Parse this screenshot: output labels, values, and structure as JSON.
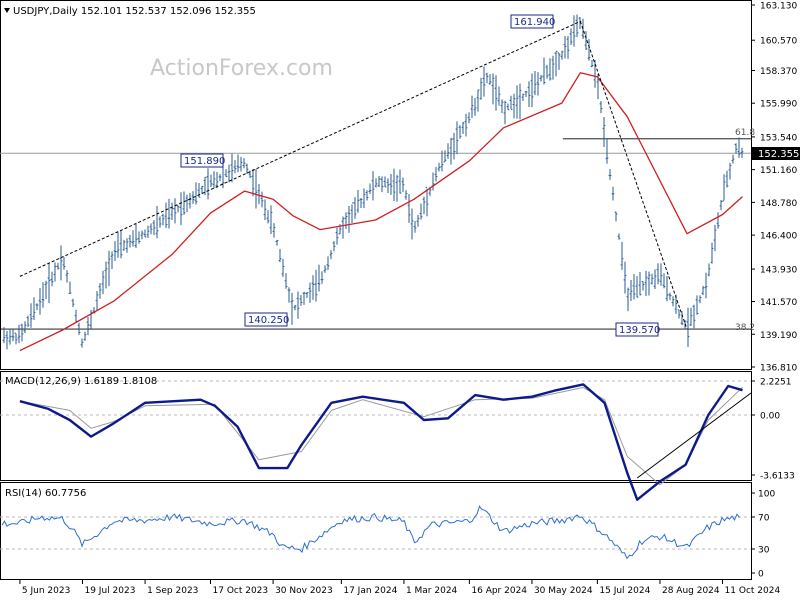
{
  "price_panel": {
    "info": "USDJPY,Daily  152.101 152.537 152.096 152.355",
    "watermark": "ActionForex.com",
    "current_price_label": "152.355",
    "axis_ticks": [
      "163.130",
      "160.570",
      "158.370",
      "155.990",
      "153.540",
      "151.160",
      "148.780",
      "146.400",
      "143.930",
      "141.570",
      "139.190",
      "136.810"
    ]
  },
  "macd_panel": {
    "label": "MACD(12,26,9) 1.6189 1.8108",
    "axis_ticks": [
      "2.2251",
      "0.00",
      "-3.6133"
    ]
  },
  "rsi_panel": {
    "label": "RSI(14) 60.7756",
    "axis_ticks": [
      "100",
      "70",
      "30",
      "0"
    ]
  },
  "x_axis_ticks": [
    "5 Jun 2023",
    "19 Jul 2023",
    "1 Sep 2023",
    "17 Oct 2023",
    "30 Nov 2023",
    "17 Jan 2024",
    "1 Mar 2024",
    "16 Apr 2024",
    "30 May 2024",
    "15 Jul 2024",
    "28 Aug 2024",
    "11 Oct 2024"
  ],
  "annotations": {
    "high_2024": "161.940",
    "high_2023": "151.890",
    "low_dec": "140.250",
    "low_sep": "139.570",
    "fib_618": "61.8",
    "fib_382": "38.2"
  },
  "colors": {
    "price_bars": "#2a5d96",
    "moving_average": "#d01f1f",
    "macd_line": "#0d1a8c",
    "signal_line": "#999999",
    "rsi_line": "#2e6fd0",
    "trend_lines": "#000000",
    "grid_dashes": "#bbbbbb"
  },
  "chart_data": [
    {
      "type": "line",
      "name_hint": "price",
      "x": [
        "2023-06-05",
        "2023-06-20",
        "2023-07-05",
        "2023-07-19",
        "2023-08-10",
        "2023-09-01",
        "2023-09-20",
        "2023-10-17",
        "2023-11-10",
        "2023-11-30",
        "2023-12-14",
        "2024-01-02",
        "2024-01-17",
        "2024-02-10",
        "2024-03-01",
        "2024-03-08",
        "2024-03-25",
        "2024-04-16",
        "2024-04-29",
        "2024-05-10",
        "2024-05-30",
        "2024-06-20",
        "2024-07-03",
        "2024-07-15",
        "2024-08-05",
        "2024-08-28",
        "2024-09-16",
        "2024-09-30",
        "2024-10-11",
        "2024-10-21",
        "2024-10-25"
      ],
      "values": [
        139.0,
        141.8,
        144.8,
        138.5,
        145.2,
        146.5,
        148.0,
        150.2,
        151.7,
        147.0,
        141.0,
        143.0,
        147.0,
        150.2,
        150.0,
        146.7,
        151.2,
        155.0,
        158.0,
        155.5,
        157.0,
        159.5,
        161.9,
        157.5,
        142.0,
        143.5,
        139.6,
        143.0,
        149.2,
        152.9,
        152.355
      ],
      "ylim": [
        136.81,
        163.13
      ],
      "axis_ticks": [
        136.81,
        139.19,
        141.57,
        143.93,
        146.4,
        148.78,
        151.16,
        153.54,
        155.99,
        158.37,
        160.57,
        163.13
      ],
      "current_value": 152.355,
      "moving_average": {
        "x": [
          "2023-06-05",
          "2023-07-05",
          "2023-08-10",
          "2023-09-20",
          "2023-10-17",
          "2023-11-10",
          "2023-11-30",
          "2023-12-14",
          "2024-01-02",
          "2024-02-10",
          "2024-03-08",
          "2024-04-16",
          "2024-05-10",
          "2024-06-20",
          "2024-07-03",
          "2024-07-15",
          "2024-08-05",
          "2024-09-16",
          "2024-10-11",
          "2024-10-25"
        ],
        "values": [
          138.0,
          139.5,
          141.6,
          145.0,
          148.0,
          149.6,
          149.0,
          147.8,
          146.8,
          147.5,
          149.0,
          151.8,
          154.2,
          156.0,
          158.2,
          157.9,
          155.0,
          146.5,
          147.9,
          149.2
        ]
      },
      "annotations": [
        {
          "label": "161.940",
          "x": "2024-07-03",
          "y": 161.94
        },
        {
          "label": "151.890",
          "x": "2023-11-13",
          "y": 151.89
        },
        {
          "label": "140.250",
          "x": "2023-12-07",
          "y": 140.25
        },
        {
          "label": "139.570",
          "x": "2024-09-16",
          "y": 139.57
        }
      ],
      "horizontal_levels": [
        {
          "label": "61.8",
          "y": 153.4
        },
        {
          "label": "38.2",
          "y": 139.57
        }
      ],
      "current_price_line": 152.355,
      "trend_lines": [
        {
          "from": {
            "x": "2023-06-05",
            "y": 143.4
          },
          "to": {
            "x": "2024-07-03",
            "y": 161.94
          }
        },
        {
          "from": {
            "x": "2024-07-03",
            "y": 161.94
          },
          "to": {
            "x": "2024-09-16",
            "y": 139.57
          }
        }
      ]
    },
    {
      "type": "line",
      "name_hint": "macd",
      "series": [
        {
          "role": "macd",
          "x": [
            "2023-06-05",
            "2023-06-25",
            "2023-07-10",
            "2023-07-25",
            "2023-08-10",
            "2023-09-01",
            "2023-10-10",
            "2023-10-20",
            "2023-11-05",
            "2023-11-20",
            "2023-12-10",
            "2023-12-20",
            "2024-01-10",
            "2024-02-01",
            "2024-03-01",
            "2024-03-15",
            "2024-04-01",
            "2024-04-20",
            "2024-05-10",
            "2024-05-30",
            "2024-06-15",
            "2024-07-05",
            "2024-07-20",
            "2024-08-05",
            "2024-08-12",
            "2024-08-28",
            "2024-09-15",
            "2024-10-01",
            "2024-10-15",
            "2024-10-25"
          ],
          "values": [
            0.9,
            0.4,
            -0.3,
            -1.3,
            -0.5,
            0.8,
            1.0,
            0.6,
            -0.7,
            -3.2,
            -3.2,
            -1.8,
            0.8,
            1.2,
            0.8,
            -0.3,
            -0.2,
            1.3,
            1.0,
            1.2,
            1.6,
            2.0,
            0.8,
            -3.5,
            -5.1,
            -4.0,
            -3.0,
            0.0,
            1.9,
            1.62
          ]
        },
        {
          "role": "signal",
          "x": [
            "2023-06-05",
            "2023-07-10",
            "2023-07-25",
            "2023-08-10",
            "2023-09-01",
            "2023-10-20",
            "2023-11-20",
            "2023-12-20",
            "2024-01-10",
            "2024-02-01",
            "2024-03-15",
            "2024-04-20",
            "2024-05-30",
            "2024-07-05",
            "2024-07-20",
            "2024-08-05",
            "2024-08-28",
            "2024-09-15",
            "2024-10-01",
            "2024-10-25"
          ],
          "values": [
            0.9,
            0.3,
            -0.8,
            -0.4,
            0.6,
            0.7,
            -2.7,
            -2.2,
            0.3,
            1.0,
            -0.1,
            1.0,
            1.1,
            1.8,
            1.0,
            -2.5,
            -4.2,
            -3.0,
            -0.3,
            1.81
          ]
        }
      ],
      "axis_ticks": [
        -3.6133,
        0.0,
        2.2251
      ],
      "ylim": [
        -4.5,
        2.8
      ],
      "trend_line": {
        "from": {
          "x": "2024-08-12",
          "y": -5.0
        },
        "to": {
          "x": "2024-10-31",
          "y": -0.6
        }
      }
    },
    {
      "type": "line",
      "name_hint": "rsi",
      "x": [
        "2023-06-05",
        "2023-06-20",
        "2023-07-05",
        "2023-07-12",
        "2023-07-19",
        "2023-08-10",
        "2023-09-01",
        "2023-09-20",
        "2023-10-17",
        "2023-11-10",
        "2023-11-30",
        "2023-12-07",
        "2023-12-20",
        "2024-01-17",
        "2024-02-10",
        "2024-03-01",
        "2024-03-08",
        "2024-03-20",
        "2024-04-16",
        "2024-04-24",
        "2024-05-10",
        "2024-05-30",
        "2024-06-20",
        "2024-07-03",
        "2024-07-15",
        "2024-07-25",
        "2024-08-05",
        "2024-08-15",
        "2024-08-28",
        "2024-09-16",
        "2024-09-30",
        "2024-10-11",
        "2024-10-21",
        "2024-10-25"
      ],
      "values": [
        62,
        70,
        68,
        55,
        35,
        65,
        66,
        70,
        62,
        66,
        48,
        32,
        30,
        66,
        70,
        64,
        38,
        60,
        65,
        82,
        52,
        62,
        66,
        72,
        56,
        40,
        18,
        40,
        46,
        32,
        56,
        66,
        70,
        60.78
      ],
      "ylim": [
        0,
        100
      ],
      "axis_ticks": [
        0,
        30,
        70,
        100
      ],
      "reference_levels": [
        30,
        70
      ]
    }
  ]
}
